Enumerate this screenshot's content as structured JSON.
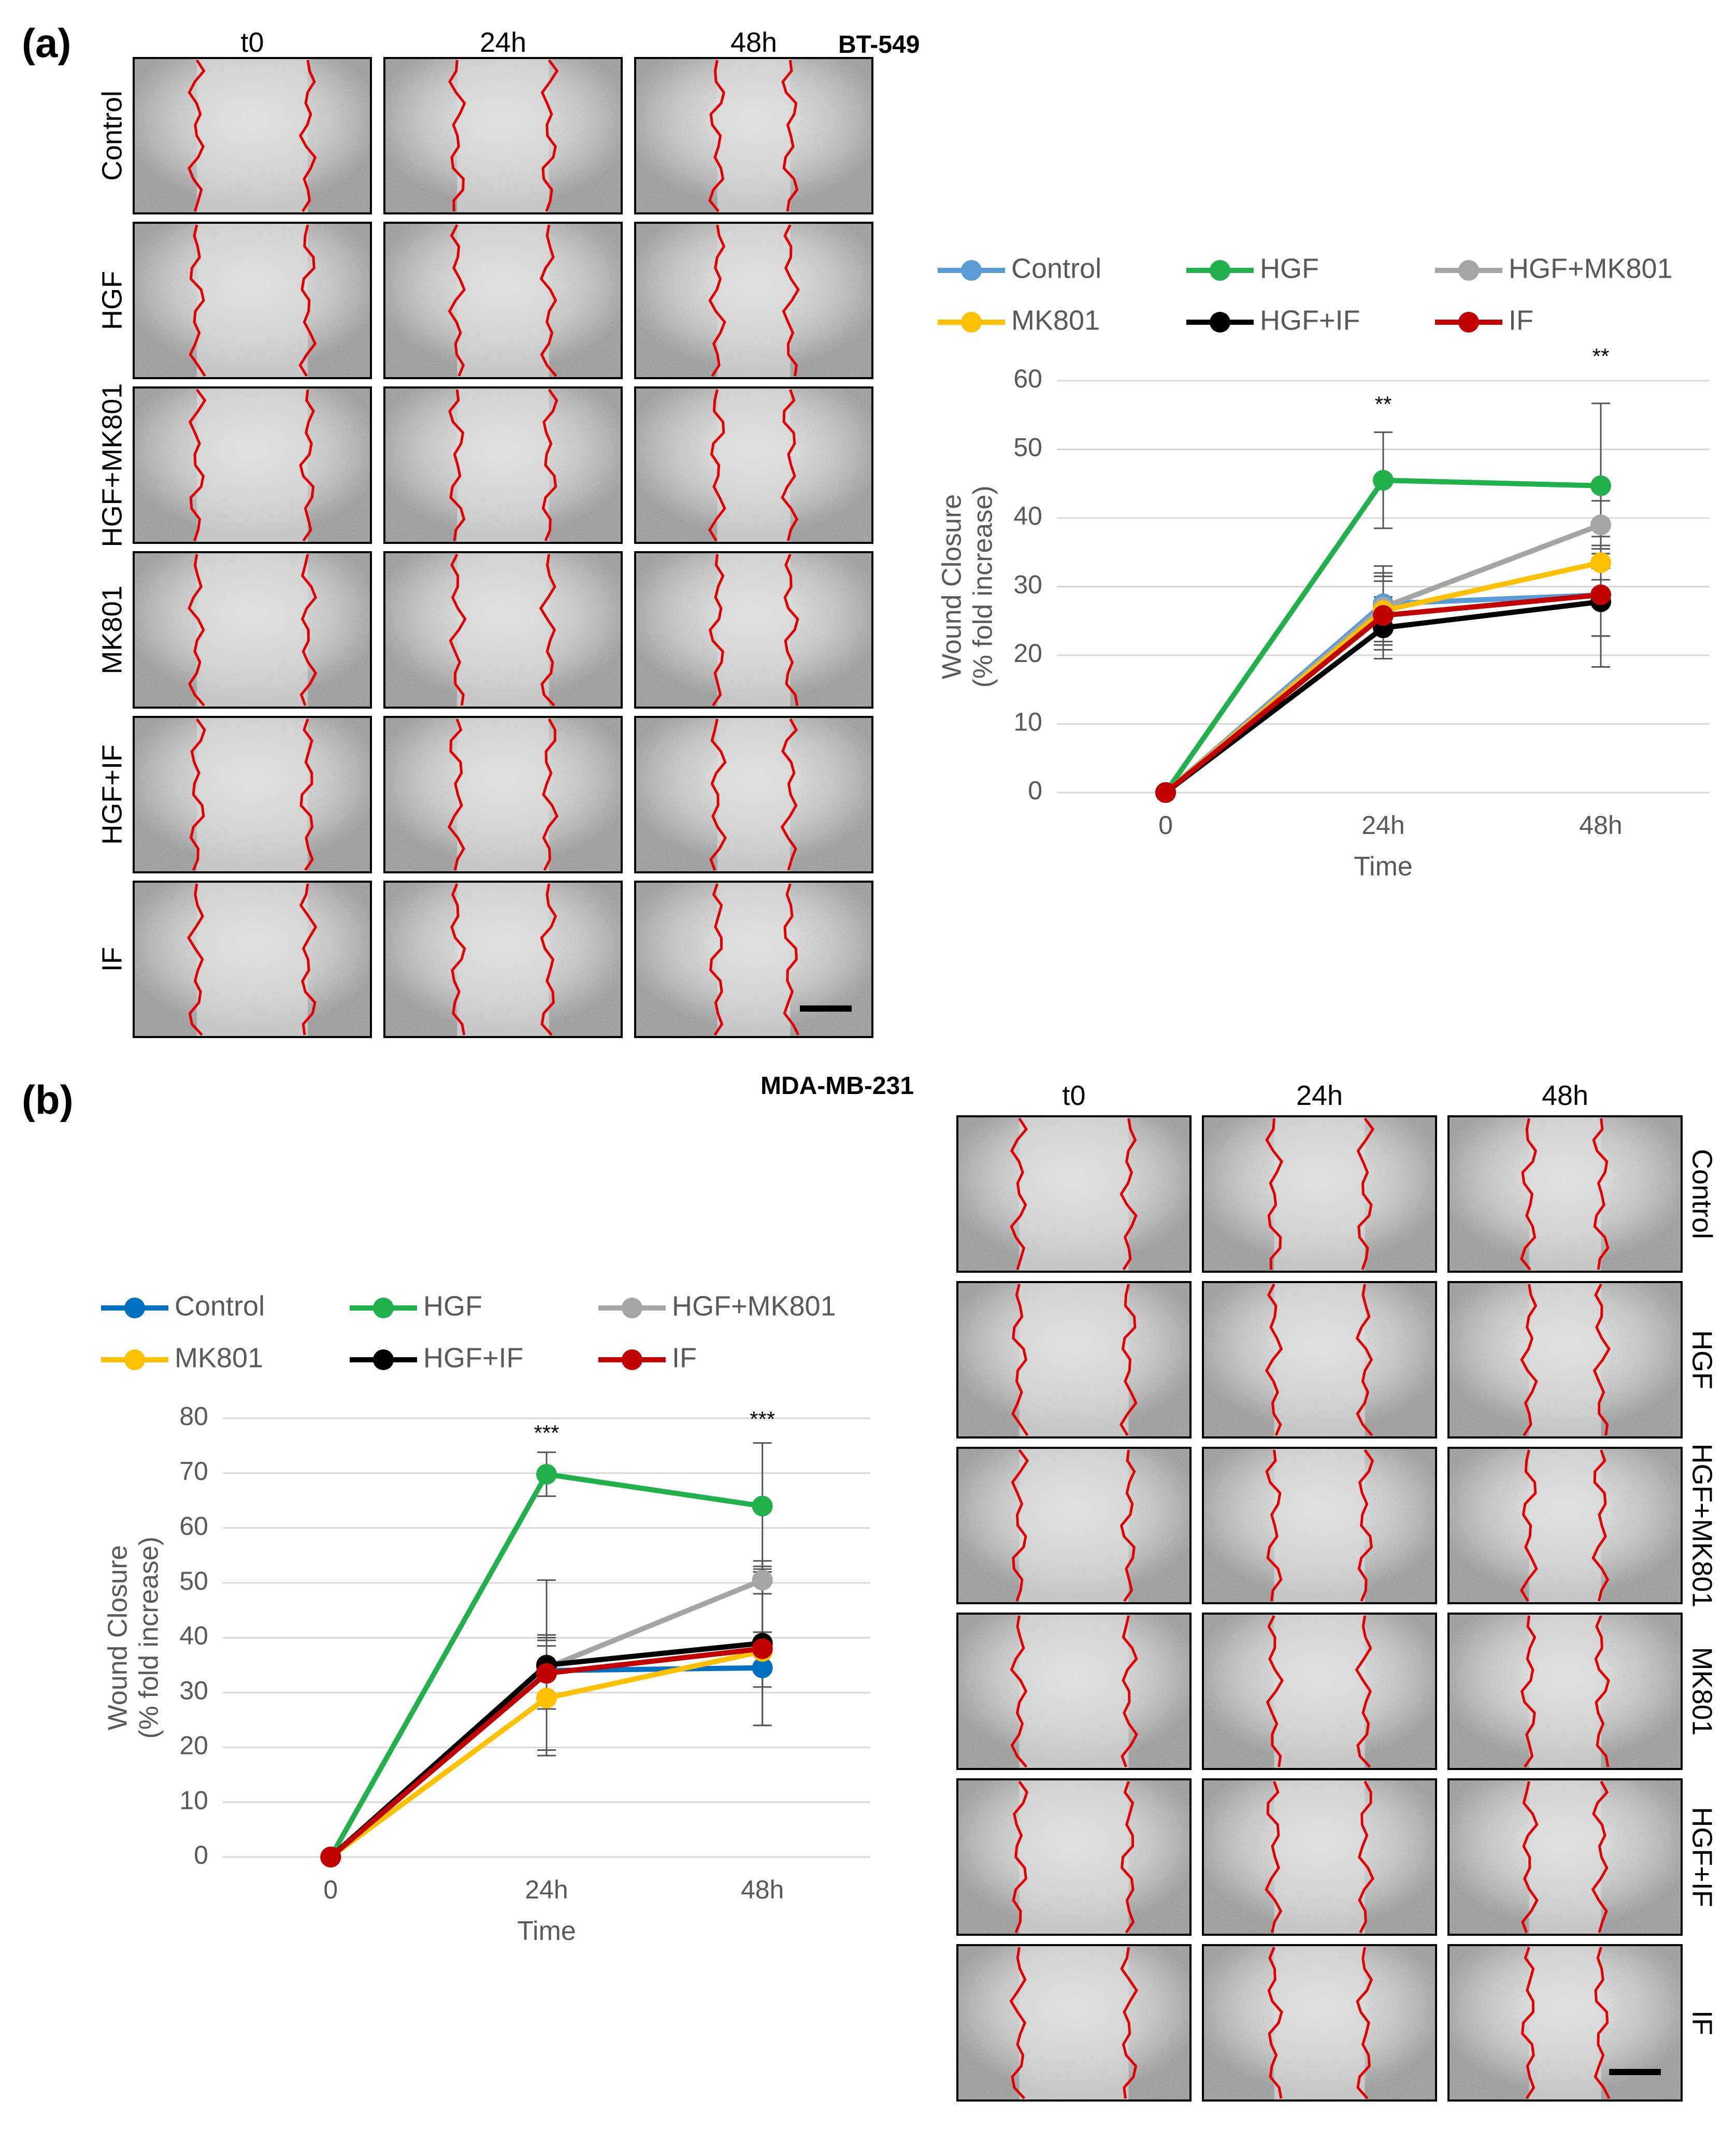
{
  "panel_a": {
    "letter": "(a)",
    "cell_line": "BT-549",
    "columns": [
      "t0",
      "24h",
      "48h"
    ],
    "rows": [
      "Control",
      "HGF",
      "HGF+MK801",
      "MK801",
      "HGF+IF",
      "IF"
    ]
  },
  "panel_b": {
    "letter": "(b)",
    "cell_line": "MDA-MB-231",
    "columns": [
      "t0",
      "24h",
      "48h"
    ],
    "rows": [
      "Control",
      "HGF",
      "HGF+MK801",
      "MK801",
      "HGF+IF",
      "IF"
    ]
  },
  "chart_data": [
    {
      "type": "line",
      "panel": "a",
      "xlabel": "Time",
      "ylabel": "Wound Closure (% fold increase)",
      "ylabel_lines": [
        "Wound Closure",
        "(% fold increase)"
      ],
      "categories": [
        "0",
        "24h",
        "48h"
      ],
      "ylim": [
        0,
        60
      ],
      "yticks": [
        0,
        10,
        20,
        30,
        40,
        50,
        60
      ],
      "grid": true,
      "legend_position": "top",
      "series": [
        {
          "name": "Control",
          "color": "#5B9BD5",
          "values": [
            0,
            27.5,
            28.8
          ],
          "errors": [
            0,
            5.5,
            6.0
          ]
        },
        {
          "name": "HGF",
          "color": "#21B04B",
          "values": [
            0,
            45.5,
            44.7
          ],
          "errors": [
            0,
            7.0,
            12.0
          ]
        },
        {
          "name": "HGF+MK801",
          "color": "#A5A5A5",
          "values": [
            0,
            27.0,
            39.0
          ],
          "errors": [
            0,
            5.0,
            3.5
          ]
        },
        {
          "name": "MK801",
          "color": "#FFC000",
          "values": [
            0,
            26.5,
            33.5
          ],
          "errors": [
            0,
            5.0,
            2.5
          ]
        },
        {
          "name": "HGF+IF",
          "color": "#000000",
          "values": [
            0,
            24.0,
            27.8
          ],
          "errors": [
            0,
            4.5,
            9.5
          ]
        },
        {
          "name": "IF",
          "color": "#C00000",
          "values": [
            0,
            25.8,
            28.8
          ],
          "errors": [
            0,
            5.0,
            6.0
          ]
        }
      ],
      "annotations": [
        {
          "category": "24h",
          "text": "**",
          "y": 55.5
        },
        {
          "category": "48h",
          "text": "**",
          "y": 62.5
        }
      ]
    },
    {
      "type": "line",
      "panel": "b",
      "xlabel": "Time",
      "ylabel": "Wound Closure (% fold increase)",
      "ylabel_lines": [
        "Wound Closure",
        "(% fold increase)"
      ],
      "categories": [
        "0",
        "24h",
        "48h"
      ],
      "ylim": [
        0,
        80
      ],
      "yticks": [
        0,
        10,
        20,
        30,
        40,
        50,
        60,
        70,
        80
      ],
      "grid": true,
      "legend_position": "top",
      "series": [
        {
          "name": "Control",
          "color": "#0070C0",
          "values": [
            0,
            34.0,
            34.5
          ],
          "errors": [
            0,
            5.5,
            3.5
          ]
        },
        {
          "name": "HGF",
          "color": "#21B04B",
          "values": [
            0,
            69.8,
            64.0
          ],
          "errors": [
            0,
            4.0,
            11.5
          ]
        },
        {
          "name": "HGF+MK801",
          "color": "#A5A5A5",
          "values": [
            0,
            34.5,
            50.5
          ],
          "errors": [
            0,
            16.0,
            2.5
          ]
        },
        {
          "name": "MK801",
          "color": "#FFC000",
          "values": [
            0,
            29.0,
            37.5
          ],
          "errors": [
            0,
            9.5,
            3.5
          ]
        },
        {
          "name": "HGF+IF",
          "color": "#000000",
          "values": [
            0,
            35.0,
            39.0
          ],
          "errors": [
            0,
            5.5,
            15.0
          ]
        },
        {
          "name": "IF",
          "color": "#C00000",
          "values": [
            0,
            33.5,
            38.0
          ],
          "errors": [
            0,
            6.5,
            14.0
          ]
        }
      ],
      "annotations": [
        {
          "category": "24h",
          "text": "***",
          "y": 76.0
        },
        {
          "category": "48h",
          "text": "***",
          "y": 78.5
        }
      ]
    }
  ]
}
